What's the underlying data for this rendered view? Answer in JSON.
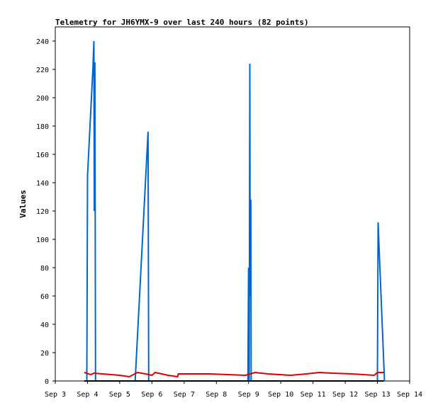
{
  "chart_data": {
    "type": "line",
    "title": "Telemetry for JH6YMX-9 over last 240 hours (82 points)",
    "xlabel": "",
    "ylabel": "Values",
    "x_ticks": [
      "Sep 3",
      "Sep 4",
      "Sep 5",
      "Sep 6",
      "Sep 7",
      "Sep 8",
      "Sep 9",
      "Sep 10",
      "Sep 11",
      "Sep 12",
      "Sep 13",
      "Sep 14"
    ],
    "xlim": [
      0,
      11
    ],
    "ylim": [
      0,
      250
    ],
    "y_ticks": [
      0,
      20,
      40,
      60,
      80,
      100,
      120,
      140,
      160,
      180,
      200,
      220,
      240
    ],
    "grid": false,
    "colors": {
      "blue": "#0066cc",
      "red": "#dd0000",
      "black": "#000000"
    },
    "series": [
      {
        "color": "#0066cc",
        "points": [
          [
            0.98,
            0
          ],
          [
            1.0,
            145
          ],
          [
            1.17,
            222
          ],
          [
            1.2,
            240
          ],
          [
            1.21,
            120
          ],
          [
            1.23,
            225
          ],
          [
            1.25,
            0
          ],
          [
            2.48,
            0
          ],
          [
            2.88,
            176
          ],
          [
            2.9,
            0
          ],
          [
            5.98,
            0
          ],
          [
            6.0,
            80
          ],
          [
            6.02,
            0
          ],
          [
            6.04,
            224
          ],
          [
            6.05,
            60
          ],
          [
            6.07,
            128
          ],
          [
            6.08,
            0
          ],
          [
            10.0,
            0
          ],
          [
            10.02,
            112
          ],
          [
            10.05,
            95
          ],
          [
            10.22,
            0
          ]
        ]
      },
      {
        "color": "#dd0000",
        "points": [
          [
            0.9,
            6
          ],
          [
            1.1,
            4.5
          ],
          [
            1.2,
            5.5
          ],
          [
            2.0,
            4
          ],
          [
            2.3,
            3
          ],
          [
            2.55,
            6
          ],
          [
            2.8,
            5
          ],
          [
            3.0,
            4
          ],
          [
            3.1,
            6
          ],
          [
            3.5,
            4
          ],
          [
            3.8,
            3
          ],
          [
            3.82,
            5
          ],
          [
            4.8,
            5
          ],
          [
            5.9,
            4
          ],
          [
            6.2,
            6
          ],
          [
            6.6,
            5
          ],
          [
            7.3,
            4
          ],
          [
            7.8,
            5
          ],
          [
            8.2,
            6
          ],
          [
            8.6,
            5.5
          ],
          [
            9.2,
            5
          ],
          [
            9.9,
            4
          ],
          [
            10.0,
            6
          ],
          [
            10.2,
            6
          ]
        ]
      },
      {
        "color": "#000000",
        "points": [
          [
            0.9,
            0
          ],
          [
            10.2,
            0
          ]
        ]
      }
    ]
  }
}
